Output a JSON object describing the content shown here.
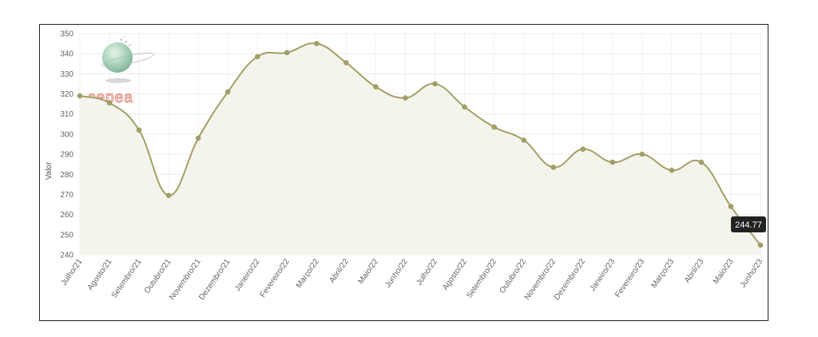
{
  "logo": {
    "text": "cepea"
  },
  "tooltip": {
    "text": "244.77",
    "index": 23
  },
  "chart_data": {
    "type": "line",
    "title": "",
    "xlabel": "",
    "ylabel": "Valor",
    "ylim": [
      240,
      350
    ],
    "yticks": [
      240,
      250,
      260,
      270,
      280,
      290,
      300,
      310,
      320,
      330,
      340,
      350
    ],
    "grid": true,
    "fill": true,
    "line_color": "#a3a066",
    "fill_color": "#f3f4ec",
    "categories": [
      "Julho/21",
      "Agosto/21",
      "Setembro/21",
      "Outubro/21",
      "Novembro/21",
      "Dezembro/21",
      "Janeiro/22",
      "Fevereiro/22",
      "Março/22",
      "Abril/22",
      "Maio/22",
      "Junho/22",
      "Julho/22",
      "Agosto/22",
      "Setembro/22",
      "Outubro/22",
      "Novembro/22",
      "Dezembro/22",
      "Janeiro/23",
      "Fevereiro/23",
      "Março/23",
      "Abril/23",
      "Maio/23",
      "Junho/23"
    ],
    "values": [
      319,
      315.5,
      302,
      269.5,
      298,
      321,
      338.5,
      340.5,
      345,
      335.5,
      323.5,
      318,
      325,
      313.5,
      303.5,
      297,
      283.5,
      292.5,
      286,
      290,
      282,
      286,
      264,
      244.77
    ]
  }
}
